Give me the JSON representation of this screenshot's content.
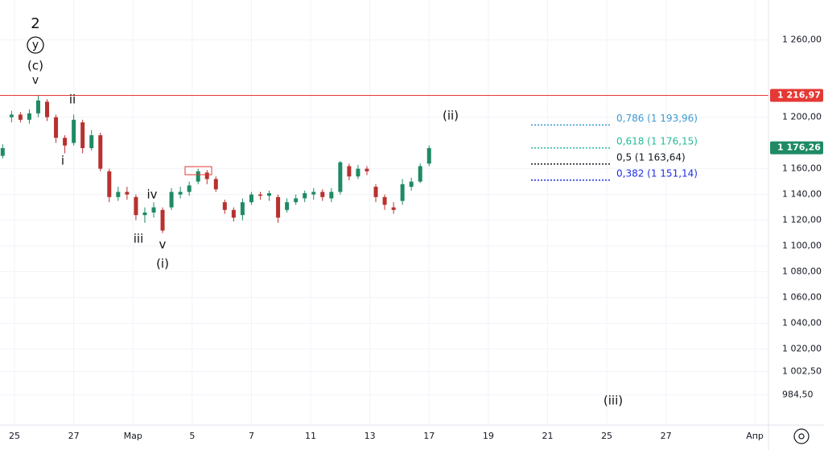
{
  "chart_data": {
    "type": "candlestick",
    "x": [
      -0.4,
      -0.1,
      0.2,
      0.5,
      0.8,
      1.1,
      1.4,
      1.7,
      2.0,
      2.3,
      2.6,
      2.9,
      3.2,
      3.5,
      3.8,
      4.1,
      4.4,
      4.7,
      5.0,
      5.3,
      5.6,
      5.9,
      6.2,
      6.5,
      6.8,
      7.1,
      7.4,
      7.7,
      8.0,
      8.3,
      8.6,
      8.9,
      9.2,
      9.5,
      9.8,
      10.1,
      10.4,
      10.7,
      11.0,
      11.3,
      11.6,
      11.9,
      12.2,
      12.5,
      12.8,
      13.1,
      13.4,
      13.7,
      14.0
    ],
    "open": [
      1170,
      1200,
      1202,
      1198,
      1203,
      1212,
      1200,
      1184,
      1180,
      1196,
      1176,
      1186,
      1158,
      1138,
      1142,
      1138,
      1124,
      1126,
      1128,
      1130,
      1140,
      1142,
      1150,
      1157,
      1152,
      1134,
      1128,
      1124,
      1134,
      1140,
      1139,
      1138,
      1128,
      1134,
      1137,
      1140,
      1142,
      1137,
      1142,
      1162,
      1154,
      1160,
      1146,
      1138,
      1130,
      1135,
      1146,
      1150,
      1164
    ],
    "high": [
      1179,
      1205,
      1204,
      1206,
      1217,
      1214,
      1202,
      1186,
      1202,
      1198,
      1190,
      1188,
      1160,
      1146,
      1146,
      1140,
      1130,
      1134,
      1130,
      1145,
      1146,
      1150,
      1160,
      1159,
      1154,
      1136,
      1130,
      1137,
      1142,
      1142,
      1143,
      1140,
      1137,
      1140,
      1143,
      1145,
      1144,
      1145,
      1166,
      1164,
      1163,
      1162,
      1148,
      1140,
      1134,
      1152,
      1153,
      1164,
      1178
    ],
    "low": [
      1168,
      1196,
      1196,
      1195,
      1200,
      1197,
      1180,
      1172,
      1178,
      1172,
      1174,
      1158,
      1134,
      1135,
      1136,
      1120,
      1118,
      1122,
      1110,
      1128,
      1137,
      1139,
      1148,
      1148,
      1142,
      1125,
      1119,
      1120,
      1132,
      1136,
      1135,
      1118,
      1126,
      1132,
      1134,
      1136,
      1135,
      1134,
      1140,
      1151,
      1152,
      1155,
      1134,
      1128,
      1125,
      1132,
      1143,
      1149,
      1162
    ],
    "close": [
      1176,
      1202,
      1198,
      1203,
      1213,
      1200,
      1184,
      1178,
      1198,
      1176,
      1186,
      1160,
      1138,
      1142,
      1140,
      1124,
      1126,
      1130,
      1112,
      1142,
      1142,
      1147,
      1158,
      1152,
      1144,
      1128,
      1122,
      1134,
      1140,
      1139,
      1141,
      1122,
      1134,
      1137,
      1141,
      1142,
      1138,
      1142,
      1165,
      1154,
      1160,
      1158,
      1138,
      1132,
      1128,
      1148,
      1150,
      1162,
      1176
    ],
    "up_color": "#1f8a63",
    "down_color": "#b8312f",
    "xlim": [
      -0.49,
      25.46
    ],
    "xticks": [
      {
        "value": 0,
        "label": "25"
      },
      {
        "value": 2,
        "label": "27"
      },
      {
        "value": 4,
        "label": "Мар"
      },
      {
        "value": 6,
        "label": "5"
      },
      {
        "value": 8,
        "label": "7"
      },
      {
        "value": 10,
        "label": "11"
      },
      {
        "value": 12,
        "label": "13"
      },
      {
        "value": 14,
        "label": "17"
      },
      {
        "value": 16,
        "label": "19"
      },
      {
        "value": 18,
        "label": "21"
      },
      {
        "value": 20,
        "label": "25"
      },
      {
        "value": 22,
        "label": "27"
      },
      {
        "value": 25,
        "label": "Апр"
      }
    ],
    "ylim": [
      961,
      1291
    ],
    "yticks": [
      {
        "value": 1260,
        "label": "1 260,00"
      },
      {
        "value": 1200,
        "label": "1 200,00"
      },
      {
        "value": 1160,
        "label": "1 160,00"
      },
      {
        "value": 1140,
        "label": "1 140,00"
      },
      {
        "value": 1120,
        "label": "1 120,00"
      },
      {
        "value": 1100,
        "label": "1 100,00"
      },
      {
        "value": 1080,
        "label": "1 080,00"
      },
      {
        "value": 1060,
        "label": "1 060,00"
      },
      {
        "value": 1040,
        "label": "1 040,00"
      },
      {
        "value": 1020,
        "label": "1 020,00"
      },
      {
        "value": 1002.5,
        "label": "1 002,50"
      },
      {
        "value": 984.5,
        "label": "984,50"
      }
    ],
    "grid": true,
    "hline": {
      "value": 1216.97,
      "label": "1 216,97",
      "color": "#e53935"
    },
    "last_price": {
      "value": 1176.26,
      "label": "1 176,26",
      "color": "#1f8a63"
    },
    "fib_levels": [
      {
        "value": 1193.96,
        "label": "0,786 (1 193,96)",
        "color": "#3d9ad1"
      },
      {
        "value": 1176.15,
        "label": "0,618 (1 176,15)",
        "color": "#26b99a"
      },
      {
        "value": 1163.64,
        "label": "0,5 (1 163,64)",
        "color": "#131722"
      },
      {
        "value": 1151.14,
        "label": "0,382 (1 151,14)",
        "color": "#1f2fe0"
      }
    ],
    "annotations": [
      "2",
      "y",
      "(c)",
      "v",
      "ii",
      "i",
      "iii",
      "iv",
      "v",
      "(i)",
      "(ii)",
      "(iii)"
    ]
  }
}
